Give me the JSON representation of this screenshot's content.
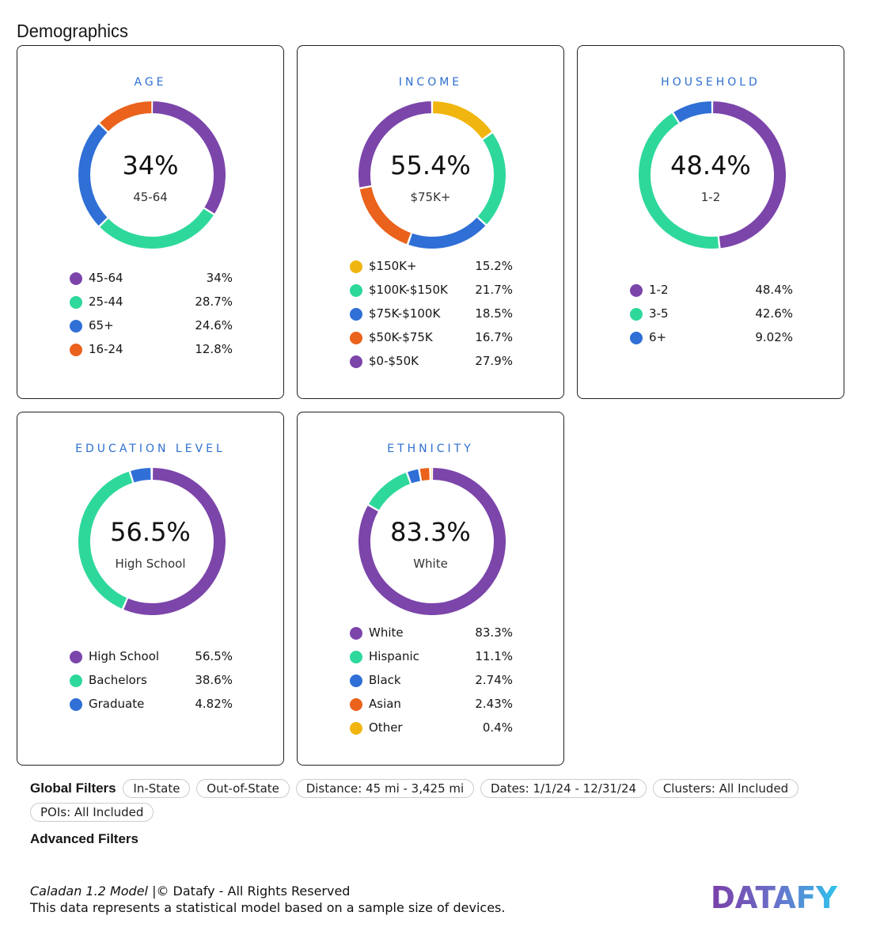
{
  "page_title": "Demographics",
  "colors": {
    "purple": "#7b45aa",
    "green": "#2ed89b",
    "blue": "#2f6fd6",
    "orange": "#ea621b",
    "yellow": "#f1b50f",
    "title": "#2e6fd0"
  },
  "cards": [
    {
      "title": "AGE",
      "center_value": "34%",
      "center_label": "45-64",
      "items": [
        {
          "label": "45-64",
          "value": "34%",
          "pct": 34,
          "color": "purple"
        },
        {
          "label": "25-44",
          "value": "28.7%",
          "pct": 28.7,
          "color": "green"
        },
        {
          "label": "65+",
          "value": "24.6%",
          "pct": 24.6,
          "color": "blue"
        },
        {
          "label": "16-24",
          "value": "12.8%",
          "pct": 12.8,
          "color": "orange"
        }
      ]
    },
    {
      "title": "INCOME",
      "center_value": "55.4%",
      "center_label": "$75K+",
      "items": [
        {
          "label": "$150K+",
          "value": "15.2%",
          "pct": 15.2,
          "color": "yellow"
        },
        {
          "label": "$100K-$150K",
          "value": "21.7%",
          "pct": 21.7,
          "color": "green"
        },
        {
          "label": "$75K-$100K",
          "value": "18.5%",
          "pct": 18.5,
          "color": "blue"
        },
        {
          "label": "$50K-$75K",
          "value": "16.7%",
          "pct": 16.7,
          "color": "orange"
        },
        {
          "label": "$0-$50K",
          "value": "27.9%",
          "pct": 27.9,
          "color": "purple"
        }
      ]
    },
    {
      "title": "HOUSEHOLD",
      "center_value": "48.4%",
      "center_label": "1-2",
      "items": [
        {
          "label": "1-2",
          "value": "48.4%",
          "pct": 48.4,
          "color": "purple"
        },
        {
          "label": "3-5",
          "value": "42.6%",
          "pct": 42.6,
          "color": "green"
        },
        {
          "label": "6+",
          "value": "9.02%",
          "pct": 9.02,
          "color": "blue"
        }
      ]
    },
    {
      "title": "EDUCATION LEVEL",
      "center_value": "56.5%",
      "center_label": "High School",
      "items": [
        {
          "label": "High School",
          "value": "56.5%",
          "pct": 56.5,
          "color": "purple"
        },
        {
          "label": "Bachelors",
          "value": "38.6%",
          "pct": 38.6,
          "color": "green"
        },
        {
          "label": "Graduate",
          "value": "4.82%",
          "pct": 4.82,
          "color": "blue"
        }
      ]
    },
    {
      "title": "ETHNICITY",
      "center_value": "83.3%",
      "center_label": "White",
      "items": [
        {
          "label": "White",
          "value": "83.3%",
          "pct": 83.3,
          "color": "purple"
        },
        {
          "label": "Hispanic",
          "value": "11.1%",
          "pct": 11.1,
          "color": "green"
        },
        {
          "label": "Black",
          "value": "2.74%",
          "pct": 2.74,
          "color": "blue"
        },
        {
          "label": "Asian",
          "value": "2.43%",
          "pct": 2.43,
          "color": "orange"
        },
        {
          "label": "Other",
          "value": "0.4%",
          "pct": 0.4,
          "color": "yellow"
        }
      ]
    }
  ],
  "filters": {
    "label": "Global Filters",
    "chips": [
      "In-State",
      "Out-of-State",
      "Distance: 45 mi - 3,425 mi",
      "Dates: 1/1/24 - 12/31/24",
      "Clusters: All Included",
      "POIs: All Included"
    ],
    "advanced_label": "Advanced Filters"
  },
  "footer": {
    "model": "Caladan 1.2 Model",
    "rights": " |© Datafy - All Rights Reserved",
    "note": "This data represents a statistical model based on a sample size of devices.",
    "logo_text": "DATAFY"
  }
}
